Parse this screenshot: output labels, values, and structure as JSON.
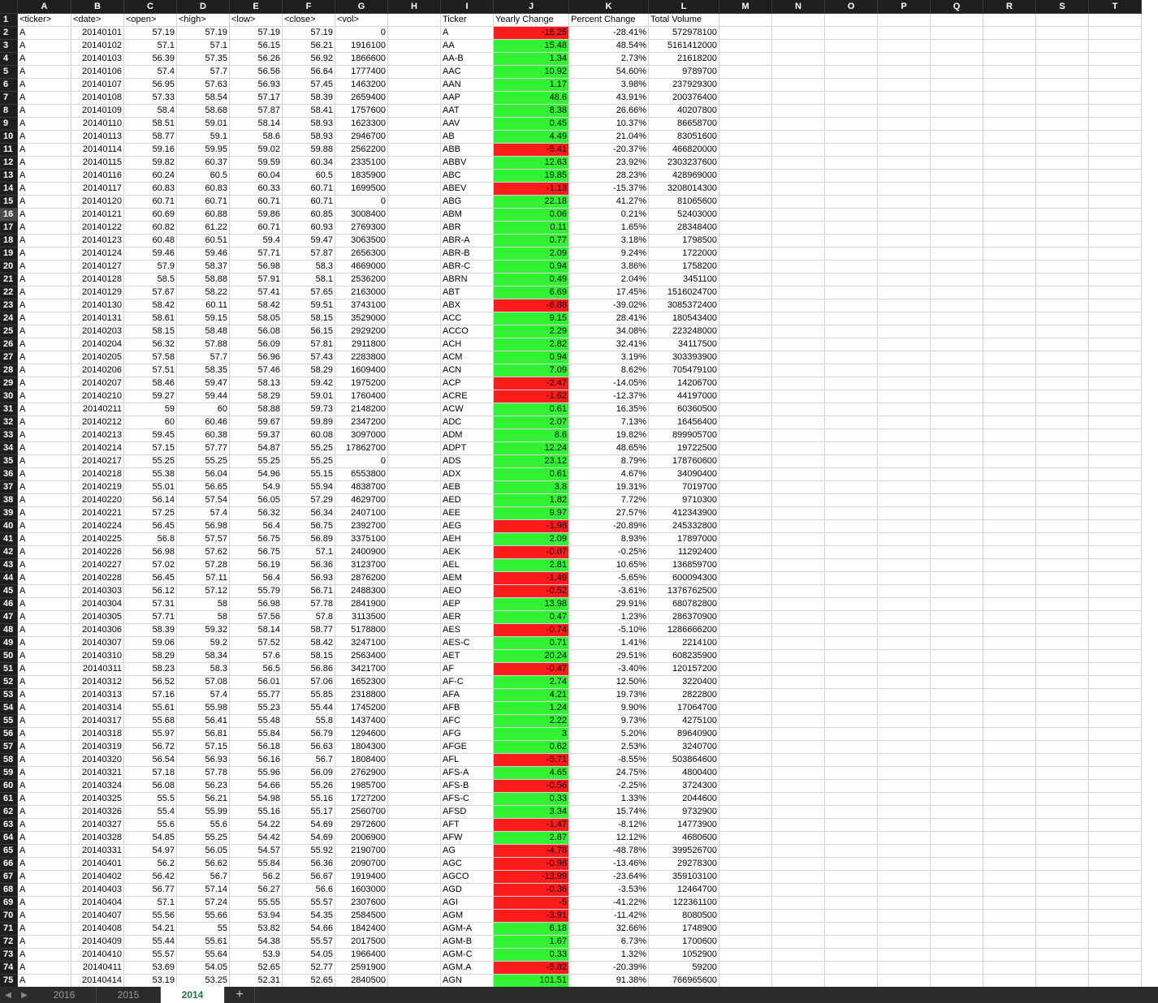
{
  "columns": [
    "A",
    "B",
    "C",
    "D",
    "E",
    "F",
    "G",
    "H",
    "I",
    "J",
    "K",
    "L",
    "M",
    "N",
    "O",
    "P",
    "Q",
    "R",
    "S",
    "T"
  ],
  "header_row": [
    "<ticker>",
    "<date>",
    "<open>",
    "<high>",
    "<low>",
    "<close>",
    "<vol>",
    "",
    "Ticker",
    "Yearly Change",
    "Percent Change",
    "Total Volume",
    "",
    "",
    "",
    "",
    "",
    "",
    "",
    ""
  ],
  "selected_row": 16,
  "colors": {
    "positive": "#33f233",
    "negative": "#fb1b1b",
    "header_bg": "#1f1f1f",
    "active_tab": "#1d7a3f"
  },
  "rows": [
    [
      "A",
      "20140101",
      "57.19",
      "57.19",
      "57.19",
      "57.19",
      "0",
      "A",
      "-16.25",
      "-28.41%",
      "572978100"
    ],
    [
      "A",
      "20140102",
      "57.1",
      "57.1",
      "56.15",
      "56.21",
      "1916100",
      "AA",
      "15.48",
      "48.54%",
      "5161412000"
    ],
    [
      "A",
      "20140103",
      "56.39",
      "57.35",
      "56.26",
      "56.92",
      "1866600",
      "AA-B",
      "1.34",
      "2.73%",
      "21618200"
    ],
    [
      "A",
      "20140106",
      "57.4",
      "57.7",
      "56.56",
      "56.64",
      "1777400",
      "AAC",
      "10.92",
      "54.60%",
      "9789700"
    ],
    [
      "A",
      "20140107",
      "56.95",
      "57.63",
      "56.93",
      "57.45",
      "1463200",
      "AAN",
      "1.17",
      "3.98%",
      "237929300"
    ],
    [
      "A",
      "20140108",
      "57.33",
      "58.54",
      "57.17",
      "58.39",
      "2659400",
      "AAP",
      "48.6",
      "43.91%",
      "200376400"
    ],
    [
      "A",
      "20140109",
      "58.4",
      "58.68",
      "57.87",
      "58.41",
      "1757600",
      "AAT",
      "8.38",
      "26.66%",
      "40207800"
    ],
    [
      "A",
      "20140110",
      "58.51",
      "59.01",
      "58.14",
      "58.93",
      "1623300",
      "AAV",
      "0.45",
      "10.37%",
      "86658700"
    ],
    [
      "A",
      "20140113",
      "58.77",
      "59.1",
      "58.6",
      "58.93",
      "2946700",
      "AB",
      "4.49",
      "21.04%",
      "83051600"
    ],
    [
      "A",
      "20140114",
      "59.16",
      "59.95",
      "59.02",
      "59.88",
      "2562200",
      "ABB",
      "-5.41",
      "-20.37%",
      "466820000"
    ],
    [
      "A",
      "20140115",
      "59.82",
      "60.37",
      "59.59",
      "60.34",
      "2335100",
      "ABBV",
      "12.63",
      "23.92%",
      "2303237600"
    ],
    [
      "A",
      "20140116",
      "60.24",
      "60.5",
      "60.04",
      "60.5",
      "1835900",
      "ABC",
      "19.85",
      "28.23%",
      "428969000"
    ],
    [
      "A",
      "20140117",
      "60.83",
      "60.83",
      "60.33",
      "60.71",
      "1699500",
      "ABEV",
      "-1.13",
      "-15.37%",
      "3208014300"
    ],
    [
      "A",
      "20140120",
      "60.71",
      "60.71",
      "60.71",
      "60.71",
      "0",
      "ABG",
      "22.18",
      "41.27%",
      "81065600"
    ],
    [
      "A",
      "20140121",
      "60.69",
      "60.88",
      "59.86",
      "60.85",
      "3008400",
      "ABM",
      "0.06",
      "0.21%",
      "52403000"
    ],
    [
      "A",
      "20140122",
      "60.82",
      "61.22",
      "60.71",
      "60.93",
      "2769300",
      "ABR",
      "0.11",
      "1.65%",
      "28348400"
    ],
    [
      "A",
      "20140123",
      "60.48",
      "60.51",
      "59.4",
      "59.47",
      "3063500",
      "ABR-A",
      "0.77",
      "3.18%",
      "1798500"
    ],
    [
      "A",
      "20140124",
      "59.46",
      "59.46",
      "57.71",
      "57.87",
      "2656300",
      "ABR-B",
      "2.09",
      "9.24%",
      "1722000"
    ],
    [
      "A",
      "20140127",
      "57.9",
      "58.37",
      "56.98",
      "58.3",
      "4669000",
      "ABR-C",
      "0.94",
      "3.86%",
      "1758200"
    ],
    [
      "A",
      "20140128",
      "58.5",
      "58.88",
      "57.91",
      "58.1",
      "2536200",
      "ABRN",
      "0.49",
      "2.04%",
      "3451100"
    ],
    [
      "A",
      "20140129",
      "57.67",
      "58.22",
      "57.41",
      "57.65",
      "2163000",
      "ABT",
      "6.69",
      "17.45%",
      "1516024700"
    ],
    [
      "A",
      "20140130",
      "58.42",
      "60.11",
      "58.42",
      "59.51",
      "3743100",
      "ABX",
      "-6.88",
      "-39.02%",
      "3085372400"
    ],
    [
      "A",
      "20140131",
      "58.61",
      "59.15",
      "58.05",
      "58.15",
      "3529000",
      "ACC",
      "9.15",
      "28.41%",
      "180543400"
    ],
    [
      "A",
      "20140203",
      "58.15",
      "58.48",
      "56.08",
      "56.15",
      "2929200",
      "ACCO",
      "2.29",
      "34.08%",
      "223248000"
    ],
    [
      "A",
      "20140204",
      "56.32",
      "57.88",
      "56.09",
      "57.81",
      "2911800",
      "ACH",
      "2.82",
      "32.41%",
      "34117500"
    ],
    [
      "A",
      "20140205",
      "57.58",
      "57.7",
      "56.96",
      "57.43",
      "2283800",
      "ACM",
      "0.94",
      "3.19%",
      "303393900"
    ],
    [
      "A",
      "20140206",
      "57.51",
      "58.35",
      "57.46",
      "58.29",
      "1609400",
      "ACN",
      "7.09",
      "8.62%",
      "705479100"
    ],
    [
      "A",
      "20140207",
      "58.46",
      "59.47",
      "58.13",
      "59.42",
      "1975200",
      "ACP",
      "-2.47",
      "-14.05%",
      "14206700"
    ],
    [
      "A",
      "20140210",
      "59.27",
      "59.44",
      "58.29",
      "59.01",
      "1760400",
      "ACRE",
      "-1.62",
      "-12.37%",
      "44197000"
    ],
    [
      "A",
      "20140211",
      "59",
      "60",
      "58.88",
      "59.73",
      "2148200",
      "ACW",
      "0.61",
      "16.35%",
      "60360500"
    ],
    [
      "A",
      "20140212",
      "60",
      "60.46",
      "59.67",
      "59.89",
      "2347200",
      "ADC",
      "2.07",
      "7.13%",
      "16456400"
    ],
    [
      "A",
      "20140213",
      "59.45",
      "60.38",
      "59.37",
      "60.08",
      "3097000",
      "ADM",
      "8.6",
      "19.82%",
      "899905700"
    ],
    [
      "A",
      "20140214",
      "57.15",
      "57.77",
      "54.87",
      "55.25",
      "17862700",
      "ADPT",
      "12.24",
      "48.65%",
      "19722500"
    ],
    [
      "A",
      "20140217",
      "55.25",
      "55.25",
      "55.25",
      "55.25",
      "0",
      "ADS",
      "23.12",
      "8.79%",
      "178760600"
    ],
    [
      "A",
      "20140218",
      "55.38",
      "56.04",
      "54.96",
      "55.15",
      "6553800",
      "ADX",
      "0.61",
      "4.67%",
      "34090400"
    ],
    [
      "A",
      "20140219",
      "55.01",
      "56.65",
      "54.9",
      "55.94",
      "4838700",
      "AEB",
      "3.8",
      "19.31%",
      "7019700"
    ],
    [
      "A",
      "20140220",
      "56.14",
      "57.54",
      "56.05",
      "57.29",
      "4629700",
      "AED",
      "1.82",
      "7.72%",
      "9710300"
    ],
    [
      "A",
      "20140221",
      "57.25",
      "57.4",
      "56.32",
      "56.34",
      "2407100",
      "AEE",
      "9.97",
      "27.57%",
      "412343900"
    ],
    [
      "A",
      "20140224",
      "56.45",
      "56.98",
      "56.4",
      "56.75",
      "2392700",
      "AEG",
      "-1.98",
      "-20.89%",
      "245332800"
    ],
    [
      "A",
      "20140225",
      "56.8",
      "57.57",
      "56.75",
      "56.89",
      "3375100",
      "AEH",
      "2.09",
      "8.93%",
      "17897000"
    ],
    [
      "A",
      "20140226",
      "56.98",
      "57.62",
      "56.75",
      "57.1",
      "2400900",
      "AEK",
      "-0.07",
      "-0.25%",
      "11292400"
    ],
    [
      "A",
      "20140227",
      "57.02",
      "57.28",
      "56.19",
      "56.36",
      "3123700",
      "AEL",
      "2.81",
      "10.65%",
      "136859700"
    ],
    [
      "A",
      "20140228",
      "56.45",
      "57.11",
      "56.4",
      "56.93",
      "2876200",
      "AEM",
      "-1.49",
      "-5.65%",
      "600094300"
    ],
    [
      "A",
      "20140303",
      "56.12",
      "57.12",
      "55.79",
      "56.71",
      "2488300",
      "AEO",
      "-0.52",
      "-3.61%",
      "1376762500"
    ],
    [
      "A",
      "20140304",
      "57.31",
      "58",
      "56.98",
      "57.78",
      "2841900",
      "AEP",
      "13.98",
      "29.91%",
      "680782800"
    ],
    [
      "A",
      "20140305",
      "57.71",
      "58",
      "57.56",
      "57.8",
      "3113500",
      "AER",
      "0.47",
      "1.23%",
      "286370900"
    ],
    [
      "A",
      "20140306",
      "58.39",
      "59.32",
      "58.14",
      "58.77",
      "5178800",
      "AES",
      "-0.74",
      "-5.10%",
      "1286666200"
    ],
    [
      "A",
      "20140307",
      "59.06",
      "59.2",
      "57.52",
      "58.42",
      "3247100",
      "AES-C",
      "0.71",
      "1.41%",
      "2214100"
    ],
    [
      "A",
      "20140310",
      "58.29",
      "58.34",
      "57.6",
      "58.15",
      "2563400",
      "AET",
      "20.24",
      "29.51%",
      "608235900"
    ],
    [
      "A",
      "20140311",
      "58.23",
      "58.3",
      "56.5",
      "56.86",
      "3421700",
      "AF",
      "-0.47",
      "-3.40%",
      "120157200"
    ],
    [
      "A",
      "20140312",
      "56.52",
      "57.08",
      "56.01",
      "57.06",
      "1652300",
      "AF-C",
      "2.74",
      "12.50%",
      "3220400"
    ],
    [
      "A",
      "20140313",
      "57.16",
      "57.4",
      "55.77",
      "55.85",
      "2318800",
      "AFA",
      "4.21",
      "19.73%",
      "2822800"
    ],
    [
      "A",
      "20140314",
      "55.61",
      "55.98",
      "55.23",
      "55.44",
      "1745200",
      "AFB",
      "1.24",
      "9.90%",
      "17064700"
    ],
    [
      "A",
      "20140317",
      "55.68",
      "56.41",
      "55.48",
      "55.8",
      "1437400",
      "AFC",
      "2.22",
      "9.73%",
      "4275100"
    ],
    [
      "A",
      "20140318",
      "55.97",
      "56.81",
      "55.84",
      "56.79",
      "1294600",
      "AFG",
      "3",
      "5.20%",
      "89640900"
    ],
    [
      "A",
      "20140319",
      "56.72",
      "57.15",
      "56.18",
      "56.63",
      "1804300",
      "AFGE",
      "0.62",
      "2.53%",
      "3240700"
    ],
    [
      "A",
      "20140320",
      "56.54",
      "56.93",
      "56.16",
      "56.7",
      "1808400",
      "AFL",
      "-5.71",
      "-8.55%",
      "503864600"
    ],
    [
      "A",
      "20140321",
      "57.18",
      "57.78",
      "55.96",
      "56.09",
      "2762900",
      "AFS-A",
      "4.65",
      "24.75%",
      "4800400"
    ],
    [
      "A",
      "20140324",
      "56.08",
      "56.23",
      "54.66",
      "55.26",
      "1985700",
      "AFS-B",
      "-0.56",
      "-2.25%",
      "3724300"
    ],
    [
      "A",
      "20140325",
      "55.5",
      "56.21",
      "54.98",
      "55.16",
      "1727200",
      "AFS-C",
      "0.33",
      "1.33%",
      "2044600"
    ],
    [
      "A",
      "20140326",
      "55.4",
      "55.99",
      "55.16",
      "55.17",
      "2560700",
      "AFSD",
      "3.34",
      "15.74%",
      "9732900"
    ],
    [
      "A",
      "20140327",
      "55.6",
      "55.6",
      "54.22",
      "54.69",
      "2972600",
      "AFT",
      "-1.47",
      "-8.12%",
      "14773900"
    ],
    [
      "A",
      "20140328",
      "54.85",
      "55.25",
      "54.42",
      "54.69",
      "2006900",
      "AFW",
      "2.87",
      "12.12%",
      "4680600"
    ],
    [
      "A",
      "20140331",
      "54.97",
      "56.05",
      "54.57",
      "55.92",
      "2190700",
      "AG",
      "-4.78",
      "-48.78%",
      "399526700"
    ],
    [
      "A",
      "20140401",
      "56.2",
      "56.62",
      "55.84",
      "56.36",
      "2090700",
      "AGC",
      "-0.98",
      "-13.46%",
      "29278300"
    ],
    [
      "A",
      "20140402",
      "56.42",
      "56.7",
      "56.2",
      "56.67",
      "1919400",
      "AGCO",
      "-13.99",
      "-23.64%",
      "359103100"
    ],
    [
      "A",
      "20140403",
      "56.77",
      "57.14",
      "56.27",
      "56.6",
      "1603000",
      "AGD",
      "-0.36",
      "-3.53%",
      "12464700"
    ],
    [
      "A",
      "20140404",
      "57.1",
      "57.24",
      "55.55",
      "55.57",
      "2307600",
      "AGI",
      "-5",
      "-41.22%",
      "122361100"
    ],
    [
      "A",
      "20140407",
      "55.56",
      "55.66",
      "53.94",
      "54.35",
      "2584500",
      "AGM",
      "-3.91",
      "-11.42%",
      "8080500"
    ],
    [
      "A",
      "20140408",
      "54.21",
      "55",
      "53.82",
      "54.66",
      "1842400",
      "AGM-A",
      "6.18",
      "32.66%",
      "1748900"
    ],
    [
      "A",
      "20140409",
      "55.44",
      "55.61",
      "54.38",
      "55.57",
      "2017500",
      "AGM-B",
      "1.67",
      "6.73%",
      "1700600"
    ],
    [
      "A",
      "20140410",
      "55.57",
      "55.64",
      "53.9",
      "54.05",
      "1966400",
      "AGM-C",
      "0.33",
      "1.32%",
      "1052900"
    ],
    [
      "A",
      "20140411",
      "53.69",
      "54.05",
      "52.65",
      "52.77",
      "2591900",
      "AGM.A",
      "-5.82",
      "-20.39%",
      "59200"
    ],
    [
      "A",
      "20140414",
      "53.19",
      "53.25",
      "52.31",
      "52.65",
      "2840500",
      "AGN",
      "101.51",
      "91.38%",
      "766965600"
    ]
  ],
  "sheet_tabs": [
    "2016",
    "2015",
    "2014"
  ],
  "active_tab": "2014",
  "add_tab_label": "+",
  "nav": {
    "prev": "◀",
    "next": "▶"
  }
}
